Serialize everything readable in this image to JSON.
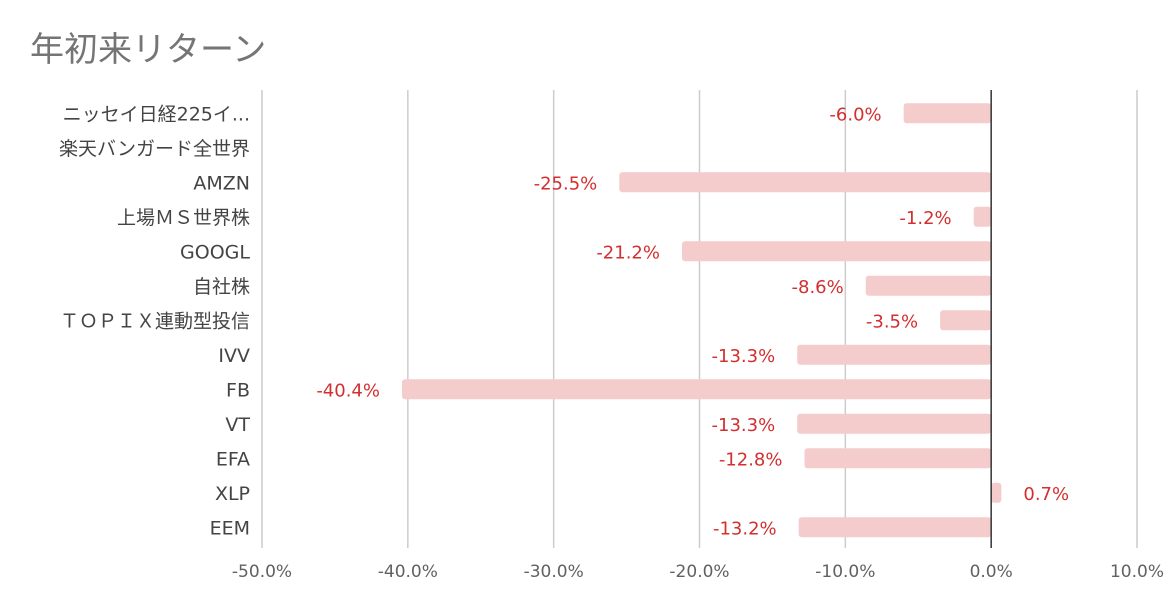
{
  "chart_data": {
    "type": "bar",
    "orientation": "horizontal",
    "title": "年初来リターン",
    "xlabel": "",
    "ylabel": "",
    "categories": [
      "ニッセイ日経225イ...",
      "楽天バンガード全世界",
      "AMZN",
      "上場ＭＳ世界株",
      "GOOGL",
      "自社株",
      "ＴＯＰＩＸ連動型投信",
      "IVV",
      "FB",
      "VT",
      "EFA",
      "XLP",
      "EEM"
    ],
    "values": [
      -6.0,
      null,
      -25.5,
      -1.2,
      -21.2,
      -8.6,
      -3.5,
      -13.3,
      -40.4,
      -13.3,
      -12.8,
      0.7,
      -13.2
    ],
    "data_labels": [
      "-6.0%",
      "",
      "-25.5%",
      "-1.2%",
      "-21.2%",
      "-8.6%",
      "-3.5%",
      "-13.3%",
      "-40.4%",
      "-13.3%",
      "-12.8%",
      "0.7%",
      "-13.2%"
    ],
    "xlim": [
      -50,
      10
    ],
    "x_ticks": [
      -50,
      -40,
      -30,
      -20,
      -10,
      0,
      10
    ],
    "x_tick_labels": [
      "-50.0%",
      "-40.0%",
      "-30.0%",
      "-20.0%",
      "-10.0%",
      "0.0%",
      "10.0%"
    ],
    "grid": true,
    "legend": "none",
    "colors": {
      "bar": "#f4cccc",
      "data_label": "#d32f2f",
      "grid": "#cccccc",
      "zero_line": "#333333",
      "title": "#757575"
    }
  }
}
